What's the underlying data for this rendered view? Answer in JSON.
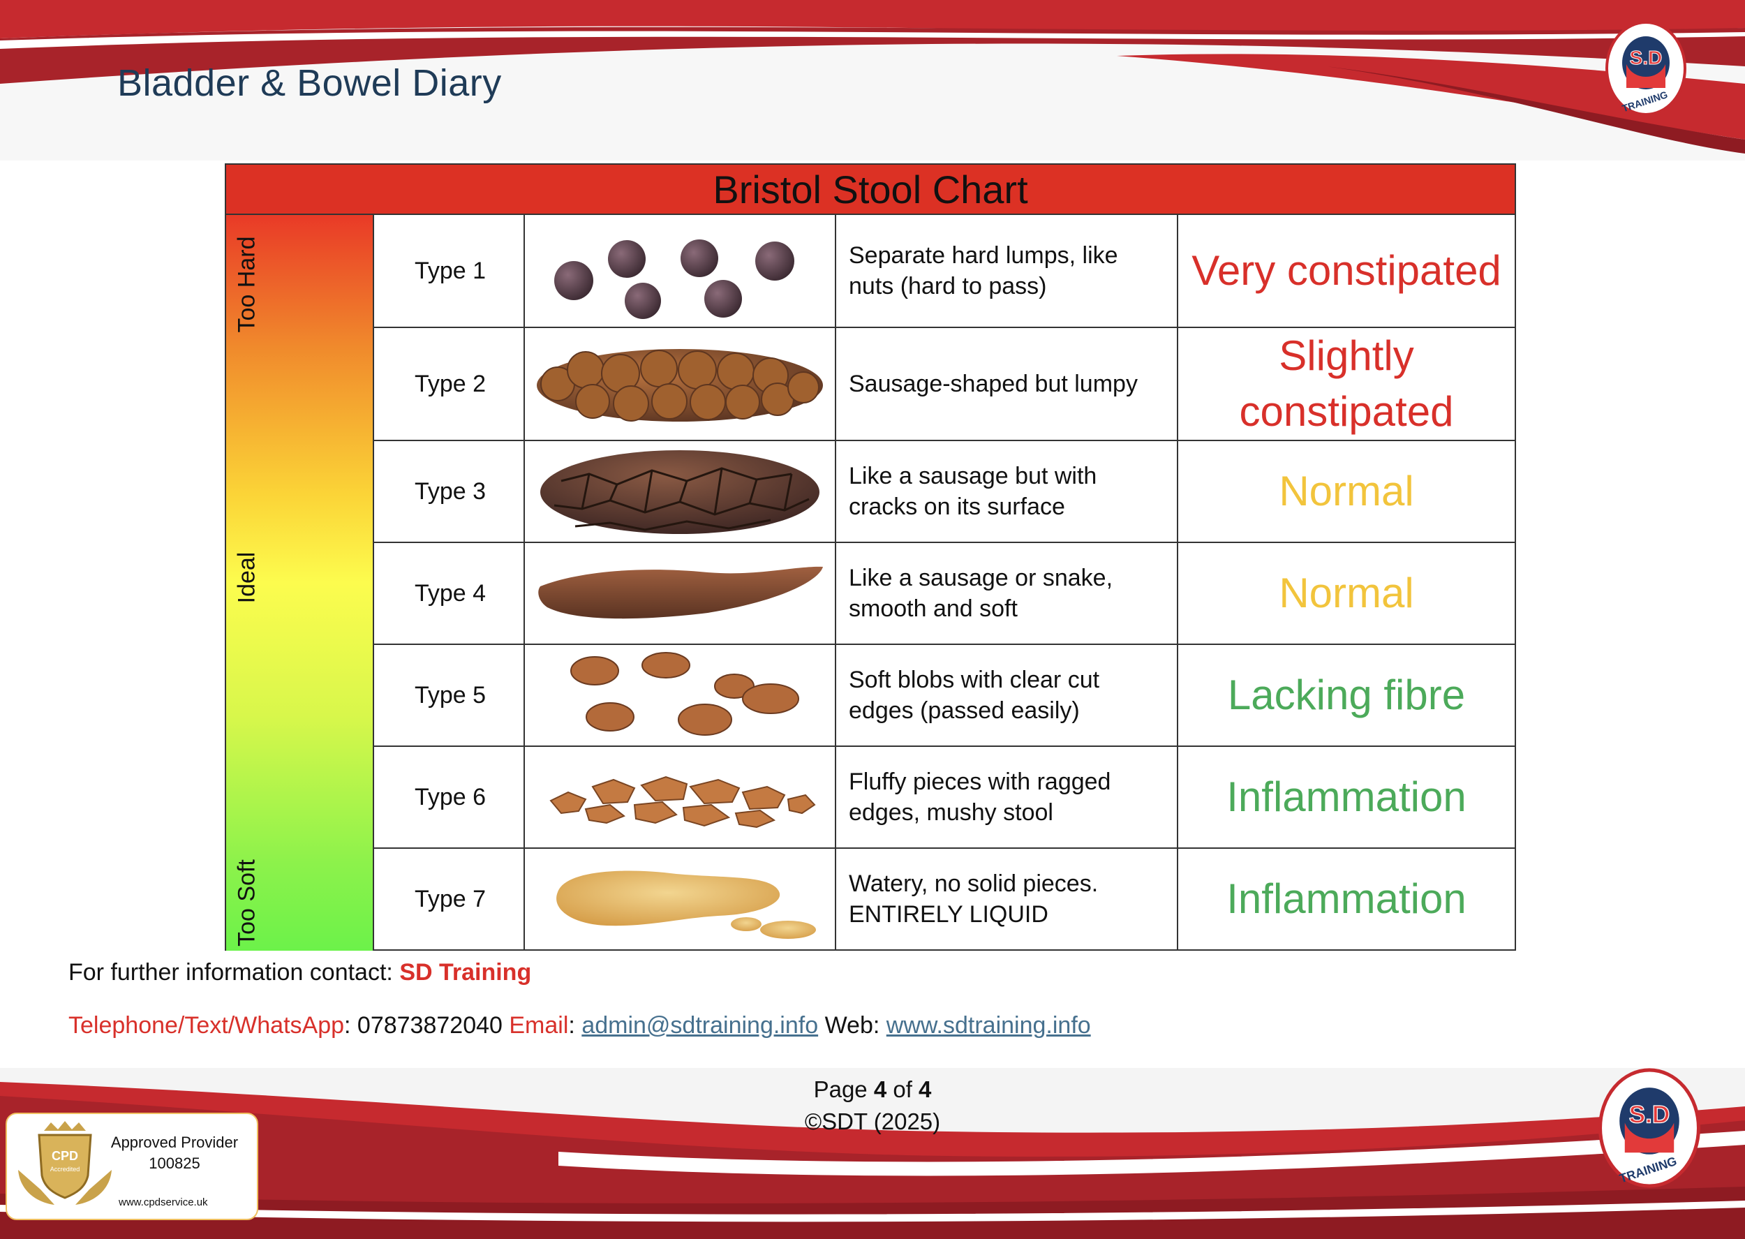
{
  "header": {
    "title": "Bladder & Bowel Diary"
  },
  "brand": {
    "logo_text_top": "S.D",
    "logo_text_bottom": "TRAINING",
    "accent": "#b8242a",
    "accent_dark": "#8e1b22"
  },
  "chart": {
    "title": "Bristol Stool Chart",
    "scale_labels": {
      "top": "Too Hard",
      "middle": "Ideal",
      "bottom": "Too Soft"
    },
    "rows": [
      {
        "type": "Type 1",
        "description": "Separate hard lumps, like nuts (hard to pass)",
        "status": "Very constipated",
        "status_color": "#d8302a",
        "icon": "hard-lumps-image"
      },
      {
        "type": "Type 2",
        "description": "Sausage-shaped but lumpy",
        "status": "Slightly constipated",
        "status_color": "#d8302a",
        "icon": "lumpy-sausage-image"
      },
      {
        "type": "Type 3",
        "description": "Like a sausage but with cracks on its surface",
        "status": "Normal",
        "status_color": "#f2c43c",
        "icon": "cracked-sausage-image"
      },
      {
        "type": "Type 4",
        "description": "Like a sausage or snake, smooth and soft",
        "status": "Normal",
        "status_color": "#f2c43c",
        "icon": "smooth-snake-image"
      },
      {
        "type": "Type 5",
        "description": "Soft blobs with clear cut edges (passed easily)",
        "status": "Lacking fibre",
        "status_color": "#4caa5a",
        "icon": "soft-blobs-image"
      },
      {
        "type": "Type 6",
        "description": "Fluffy pieces with ragged edges, mushy stool",
        "status": "Inflammation",
        "status_color": "#4caa5a",
        "icon": "mushy-pieces-image"
      },
      {
        "type": "Type 7",
        "description": "Watery, no solid pieces. ENTIRELY LIQUID",
        "status": "Inflammation",
        "status_color": "#4caa5a",
        "icon": "liquid-image"
      }
    ]
  },
  "contact": {
    "intro": "For further information contact: ",
    "org": "SD Training",
    "phone_label": "Telephone/Text/WhatsApp",
    "phone": ": 07873872040 ",
    "email_label": "Email",
    "email_sep": ": ",
    "email": "admin@sdtraining.info",
    "web_label": " Web: ",
    "web": "www.sdtraining.info"
  },
  "footer": {
    "page_prefix": "Page ",
    "page_current": "4",
    "page_of": " of ",
    "page_total": "4",
    "copyright": "©SDT (2025)"
  },
  "cpd": {
    "line1": "Approved Provider",
    "line2": "100825",
    "url": "www.cpdservice.uk",
    "badge_text": "CPD",
    "badge_sub": "Accredited"
  }
}
